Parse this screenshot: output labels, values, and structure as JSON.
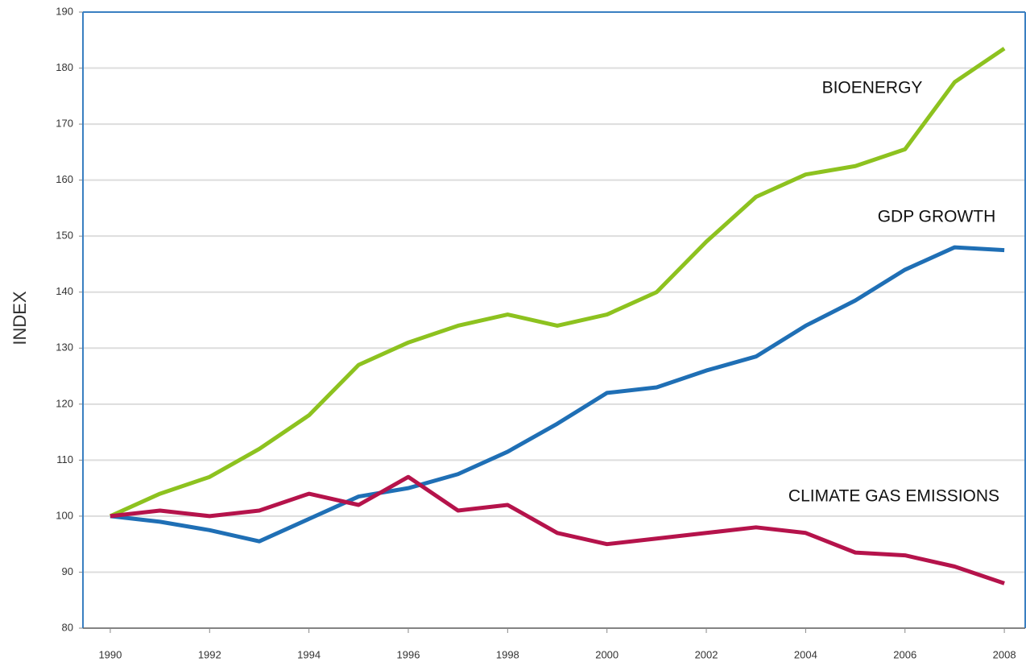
{
  "chart_data": {
    "type": "line",
    "y_label": "INDEX",
    "x": [
      1990,
      1991,
      1992,
      1993,
      1994,
      1995,
      1996,
      1997,
      1998,
      1999,
      2000,
      2001,
      2002,
      2003,
      2004,
      2005,
      2006,
      2007,
      2008
    ],
    "series": [
      {
        "name": "BIOENERGY",
        "color": "#8dc21f",
        "values": [
          100,
          104,
          107,
          112,
          118,
          127,
          131,
          134,
          136,
          134,
          136,
          140,
          149,
          157,
          161,
          162.5,
          165.5,
          177.5,
          183.5
        ]
      },
      {
        "name": "GDP GROWTH",
        "color": "#1f6fb5",
        "values": [
          100,
          99,
          97.5,
          95.5,
          99.5,
          103.5,
          105,
          107.5,
          111.5,
          116.5,
          122,
          123,
          126,
          128.5,
          134,
          138.5,
          144,
          148,
          147.5
        ]
      },
      {
        "name": "CLIMATE GAS EMISSIONS",
        "color": "#b5134b",
        "values": [
          100,
          101,
          100,
          101,
          104,
          102,
          107,
          101,
          102,
          97,
          95,
          96,
          97,
          98,
          97,
          93.5,
          93,
          91,
          88
        ]
      }
    ],
    "xlim": [
      1989.45,
      2008.42
    ],
    "xticks": [
      1990,
      1992,
      1994,
      1996,
      1998,
      2000,
      2002,
      2004,
      2006,
      2008
    ],
    "ylim": [
      80,
      190
    ],
    "yticks": [
      80,
      90,
      100,
      110,
      120,
      130,
      140,
      150,
      160,
      170,
      180,
      190
    ],
    "grid": true
  }
}
